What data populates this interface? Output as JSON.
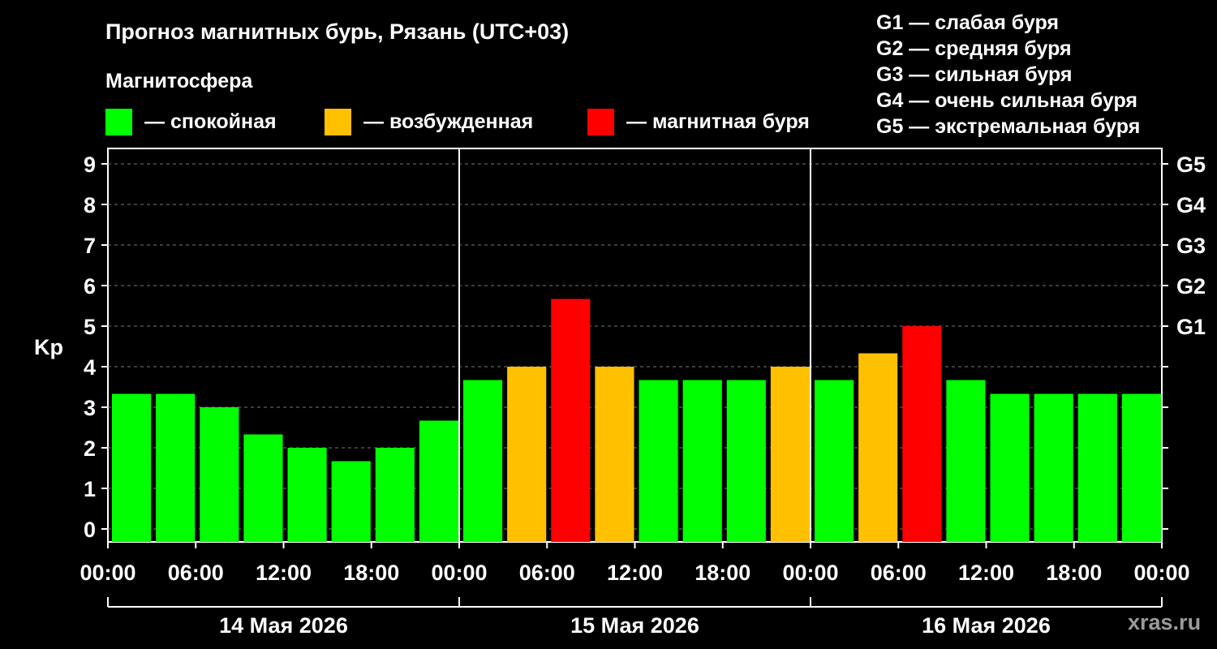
{
  "title": "Прогноз магнитных бурь, Рязань (UTC+03)",
  "magnetosphere_title": "Магнитосфера",
  "legend": [
    {
      "color": "#00ff00",
      "label": "— спокойная"
    },
    {
      "color": "#ffc000",
      "label": "— возбужденная"
    },
    {
      "color": "#ff0000",
      "label": "— магнитная буря"
    }
  ],
  "g_legend": [
    "G1 — слабая буря",
    "G2 — средняя буря",
    "G3 — сильная буря",
    "G4 — очень сильная буря",
    "G5 — экстремальная буря"
  ],
  "watermark": "xras.ru",
  "chart_data": {
    "type": "bar",
    "ylabel": "Kp",
    "ylim": [
      0,
      9
    ],
    "yticks": [
      "0",
      "1",
      "2",
      "3",
      "4",
      "5",
      "6",
      "7",
      "8",
      "9"
    ],
    "right_ticks": [
      {
        "value": 5,
        "label": "G1"
      },
      {
        "value": 6,
        "label": "G2"
      },
      {
        "value": 7,
        "label": "G3"
      },
      {
        "value": 8,
        "label": "G4"
      },
      {
        "value": 9,
        "label": "G5"
      }
    ],
    "xtick_labels": [
      "00:00",
      "06:00",
      "12:00",
      "18:00",
      "00:00",
      "06:00",
      "12:00",
      "18:00",
      "00:00",
      "06:00",
      "12:00",
      "18:00",
      "00:00"
    ],
    "days": [
      "14 Мая 2026",
      "15 Мая 2026",
      "16 Мая 2026"
    ],
    "grid": "horizontal dashed",
    "values": [
      3.33,
      3.33,
      3.0,
      2.33,
      2.0,
      1.67,
      2.0,
      2.67,
      3.67,
      4.0,
      5.67,
      4.0,
      3.67,
      3.67,
      3.67,
      4.0,
      3.67,
      4.33,
      5.0,
      3.67,
      3.33,
      3.33,
      3.33,
      3.33
    ],
    "colors": {
      "quiet": "#00ff00",
      "active": "#ffc000",
      "storm": "#ff0000"
    }
  }
}
